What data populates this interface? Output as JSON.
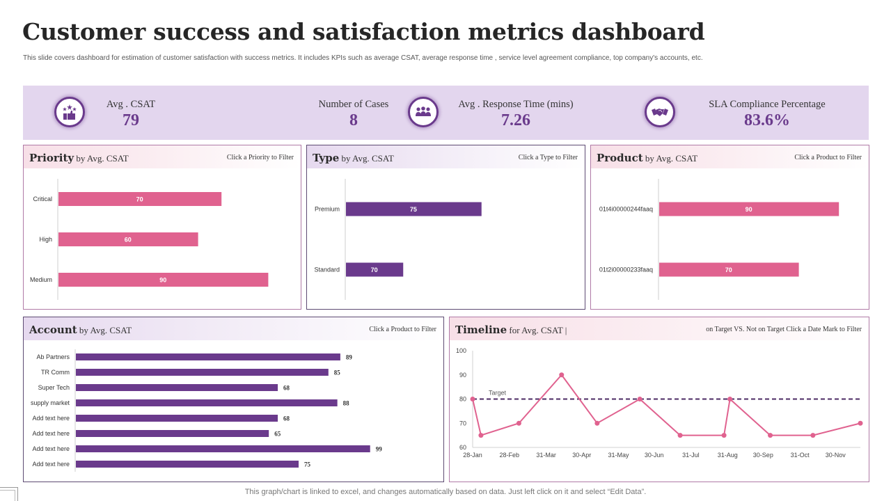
{
  "header": {
    "title": "Customer success and satisfaction metrics dashboard",
    "subtitle": "This slide covers dashboard for estimation of customer satisfaction with success metrics. It includes KPIs  such as average CSAT,  average response time , service level agreement compliance, top company's accounts, etc."
  },
  "kpis": [
    {
      "label": "Avg . CSAT",
      "value": "79",
      "icon": "thumbs-up-stars-icon"
    },
    {
      "label": "Number of Cases",
      "value": "8",
      "icon": "people-group-icon"
    },
    {
      "label": "Avg . Response Time (mins)",
      "value": "7.26",
      "icon": "people-group-icon"
    },
    {
      "label": "SLA Compliance Percentage",
      "value": "83.6%",
      "icon": "handshake-icon"
    }
  ],
  "colors": {
    "pink": "#e0628f",
    "purple": "#6a3a8c",
    "kpi_band": "#e3d6ee",
    "target_line": "#4b2a63"
  },
  "panels": {
    "priority": {
      "title_bold": "Priority",
      "title_rest": " by Avg. CSAT",
      "hint": "Click a Priority to Filter"
    },
    "type": {
      "title_bold": "Type",
      "title_rest": " by Avg. CSAT",
      "hint": "Click a Type to Filter"
    },
    "product": {
      "title_bold": "Product",
      "title_rest": " by Avg. CSAT",
      "hint": "Click a Product to Filter"
    },
    "account": {
      "title_bold": "Account",
      "title_rest": " by Avg. CSAT",
      "hint": "Click a Product to Filter"
    },
    "timeline": {
      "title_bold": "Timeline",
      "title_rest": " for Avg. CSAT  |",
      "hint": "on Target VS. Not on Target Click a Date Mark to Filter"
    }
  },
  "chart_data": [
    {
      "id": "priority",
      "type": "bar",
      "orientation": "horizontal",
      "categories": [
        "Critical",
        "High",
        "Medium"
      ],
      "values": [
        70,
        60,
        90
      ],
      "xlim": [
        0,
        100
      ],
      "label_position": "inside",
      "color": "#e0628f",
      "title": "Priority by Avg. CSAT"
    },
    {
      "id": "type",
      "type": "bar",
      "orientation": "horizontal",
      "categories": [
        "Premium",
        "Standard"
      ],
      "values": [
        75,
        70
      ],
      "xlim": [
        66.3,
        79.5
      ],
      "label_position": "inside",
      "color": "#6a3a8c",
      "title": "Type by Avg. CSAT"
    },
    {
      "id": "product",
      "type": "bar",
      "orientation": "horizontal",
      "categories": [
        "01t4i00000244faaq",
        "01t2i00000233faaq"
      ],
      "values": [
        90,
        70
      ],
      "xlim": [
        0,
        100
      ],
      "label_position": "inside",
      "color": "#e0628f",
      "title": "Product by Avg. CSAT"
    },
    {
      "id": "account",
      "type": "bar",
      "orientation": "horizontal",
      "categories": [
        "Ab Partners",
        "TR Comm",
        "Super Tech",
        "supply market",
        "Add text here",
        "Add text here",
        "Add text here",
        "Add text here"
      ],
      "values": [
        89,
        85,
        68,
        88,
        68,
        65,
        99,
        75
      ],
      "xlim": [
        0,
        100
      ],
      "label_position": "outside",
      "color": "#6a3a8c",
      "title": "Account by Avg. CSAT"
    },
    {
      "id": "timeline",
      "type": "line",
      "title": "Timeline for Avg. CSAT",
      "x_dates": [
        "2023-01-28",
        "2023-02-04",
        "2023-03-08",
        "2023-04-13",
        "2023-05-13",
        "2023-06-18",
        "2023-07-22",
        "2023-08-28",
        "2023-09-02",
        "2023-10-06",
        "2023-11-11",
        "2023-12-21"
      ],
      "values": [
        80,
        65,
        70,
        90,
        70,
        80,
        65,
        65,
        80,
        65,
        65,
        70
      ],
      "x_tick_labels": [
        "28-Jan",
        "28-Feb",
        "31-Mar",
        "30-Apr",
        "31-May",
        "30-Jun",
        "31-Jul",
        "31-Aug",
        "30-Sep",
        "31-Oct",
        "30-Nov"
      ],
      "x_tick_dates": [
        "2023-01-28",
        "2023-02-28",
        "2023-03-31",
        "2023-04-30",
        "2023-05-31",
        "2023-06-30",
        "2023-07-31",
        "2023-08-31",
        "2023-09-30",
        "2023-10-31",
        "2023-11-30"
      ],
      "xlim": [
        "2023-01-28",
        "2023-12-21"
      ],
      "ylim": [
        60,
        100
      ],
      "y_ticks": [
        60,
        70,
        80,
        90,
        100
      ],
      "target": {
        "label": "Target",
        "value": 80
      },
      "color": "#e0628f",
      "grid": false
    }
  ],
  "footer": {
    "note": "This graph/chart is linked to excel,  and changes automatically based on data. Just left click on it and select “Edit Data”."
  }
}
